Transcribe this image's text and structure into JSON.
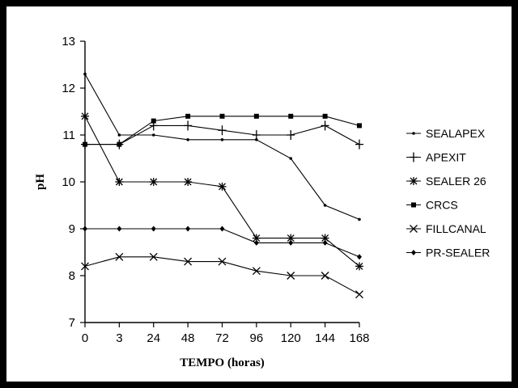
{
  "chart_data": {
    "type": "line",
    "title": "",
    "xlabel": "TEMPO (horas)",
    "ylabel": "pH",
    "categories": [
      "0",
      "3",
      "24",
      "48",
      "72",
      "96",
      "120",
      "144",
      "168"
    ],
    "ylim": [
      7,
      13
    ],
    "yticks": [
      7,
      8,
      9,
      10,
      11,
      12,
      13
    ],
    "grid": false,
    "legend_position": "right",
    "series": [
      {
        "name": "SEALAPEX",
        "marker": "dot",
        "values": [
          12.3,
          11.0,
          11.0,
          10.9,
          10.9,
          10.9,
          10.5,
          9.5,
          9.2
        ]
      },
      {
        "name": "APEXIT",
        "marker": "plus",
        "values": [
          10.8,
          10.8,
          11.2,
          11.2,
          11.1,
          11.0,
          11.0,
          11.2,
          10.8
        ]
      },
      {
        "name": "SEALER 26",
        "marker": "star",
        "values": [
          11.4,
          10.0,
          10.0,
          10.0,
          9.9,
          8.8,
          8.8,
          8.8,
          8.2
        ]
      },
      {
        "name": "CRCS",
        "marker": "square",
        "values": [
          10.8,
          10.8,
          11.3,
          11.4,
          11.4,
          11.4,
          11.4,
          11.4,
          11.2
        ]
      },
      {
        "name": "FILLCANAL",
        "marker": "x",
        "values": [
          8.2,
          8.4,
          8.4,
          8.3,
          8.3,
          8.1,
          8.0,
          8.0,
          7.6
        ]
      },
      {
        "name": "PR-SEALER",
        "marker": "diamond",
        "values": [
          9.0,
          9.0,
          9.0,
          9.0,
          9.0,
          8.7,
          8.7,
          8.7,
          8.4
        ]
      }
    ]
  }
}
